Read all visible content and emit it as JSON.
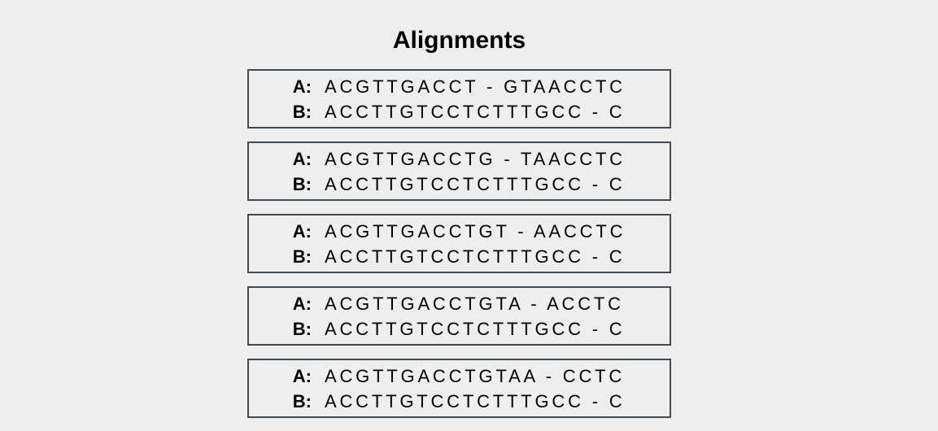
{
  "title": "Alignments",
  "alignments": [
    {
      "a_label": "A:",
      "a": "ACGTTGACCT - GTAACCTC",
      "b_label": "B:",
      "b": "ACCTTGTCCTCTTTGCC - C"
    },
    {
      "a_label": "A:",
      "a": "ACGTTGACCTG - TAACCTC",
      "b_label": "B:",
      "b": "ACCTTGTCCTCTTTGCC - C"
    },
    {
      "a_label": "A:",
      "a": "ACGTTGACCTGT - AACCTC",
      "b_label": "B:",
      "b": "ACCTTGTCCTCTTTGCC - C"
    },
    {
      "a_label": "A:",
      "a": "ACGTTGACCTGTA - ACCTC",
      "b_label": "B:",
      "b": "ACCTTGTCCTCTTTGCC - C"
    },
    {
      "a_label": "A:",
      "a": "ACGTTGACCTGTAA - CCTC",
      "b_label": "B:",
      "b": "ACCTTGTCCTCTTTGCC - C"
    }
  ]
}
